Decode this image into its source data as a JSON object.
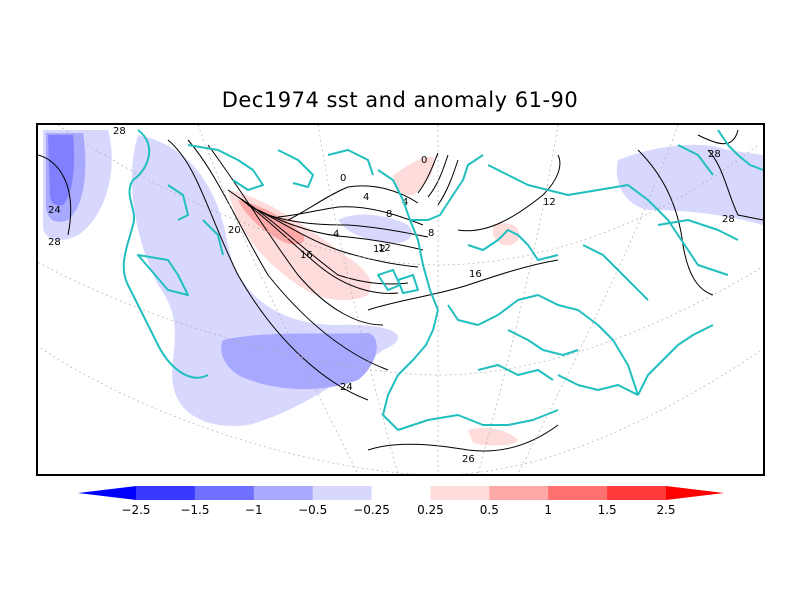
{
  "title": "Dec1974 sst and anomaly 61-90",
  "colors": {
    "coast": "#21bfbf",
    "contour": "#000000",
    "neg_strong": "#3a3aff",
    "neg_med": "#7b7bff",
    "neg_light": "#a8a8ff",
    "neg_faint": "#d8d8ff",
    "pos_faint": "#ffdcdc",
    "pos_light": "#ffa8a8",
    "pos_med": "#ff7070",
    "pos_strong": "#ff3a3a"
  },
  "contour_labels": [
    "28",
    "24",
    "20",
    "16",
    "12",
    "8",
    "4",
    "0",
    "4",
    "8",
    "12",
    "16",
    "24",
    "28",
    "28",
    "28",
    "12",
    "0",
    "4",
    "26"
  ],
  "colorbar": {
    "labels": [
      "-2.5",
      "-1.5",
      "-1",
      "-0.5",
      "-0.25",
      "0.25",
      "0.5",
      "1",
      "1.5",
      "2.5"
    ],
    "colors": [
      "#0000ff",
      "#3a3aff",
      "#7070ff",
      "#a8a8ff",
      "#d8d8ff",
      "#ffffff",
      "#ffdcdc",
      "#ffa8a8",
      "#ff7070",
      "#ff3a3a",
      "#ff0000"
    ]
  }
}
